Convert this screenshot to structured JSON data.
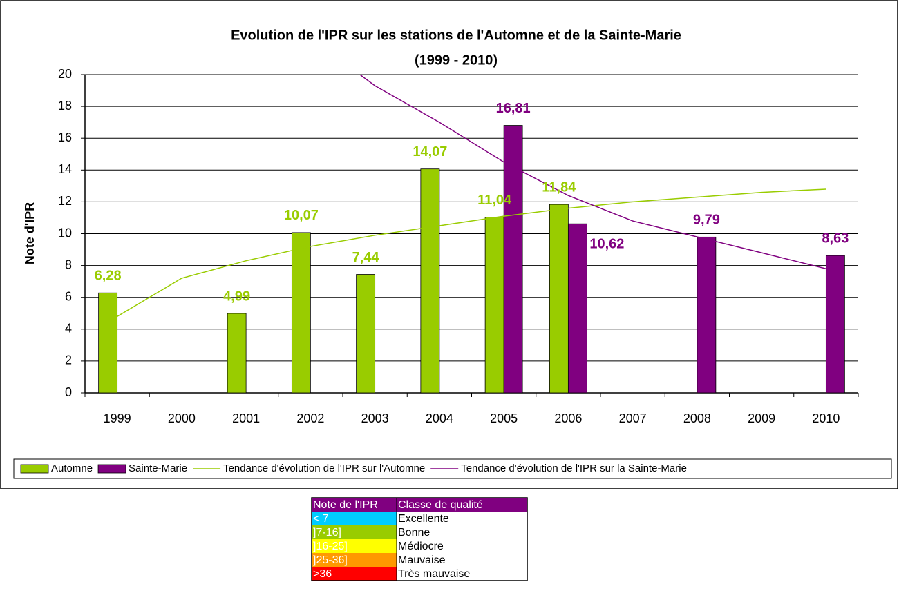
{
  "chart_data": {
    "type": "bar",
    "title": [
      "Evolution de l'IPR sur les stations de l'Automne et de la Sainte-Marie",
      "(1999 - 2010)"
    ],
    "y_label": "Note d'IPR",
    "categories": [
      "1999",
      "2000",
      "2001",
      "2002",
      "2003",
      "2004",
      "2005",
      "2006",
      "2007",
      "2008",
      "2009",
      "2010"
    ],
    "series": [
      {
        "name": "Automne",
        "type": "bar",
        "color": "#99cc00",
        "values": [
          6.28,
          null,
          4.99,
          10.07,
          7.44,
          14.07,
          11.04,
          11.84,
          null,
          null,
          null,
          null
        ],
        "value_labels": [
          "6,28",
          null,
          "4,99",
          "10,07",
          "7,44",
          "14,07",
          "11,04",
          "11,84",
          null,
          null,
          null,
          null
        ]
      },
      {
        "name": "Sainte-Marie",
        "type": "bar",
        "color": "#800080",
        "values": [
          null,
          null,
          null,
          null,
          null,
          null,
          16.81,
          10.62,
          null,
          9.79,
          null,
          8.63
        ],
        "value_labels": [
          null,
          null,
          null,
          null,
          null,
          null,
          "16,81",
          "10,62",
          null,
          "9,79",
          null,
          "8,63"
        ]
      },
      {
        "name": "Tendance d'évolution de l'IPR sur l'Automne",
        "type": "line",
        "color": "#99cc00",
        "values": [
          4.8,
          7.2,
          8.3,
          9.2,
          9.9,
          10.5,
          11.1,
          11.6,
          12.0,
          12.3,
          12.6,
          12.8
        ]
      },
      {
        "name": "Tendance d'évolution de l'IPR sur la Sainte-Marie",
        "type": "line",
        "color": "#800080",
        "values": [
          null,
          null,
          null,
          22.3,
          19.3,
          17.0,
          14.5,
          12.4,
          10.8,
          9.8,
          8.8,
          7.8
        ]
      }
    ],
    "ylim": [
      0,
      20
    ],
    "yticks": [
      0,
      2,
      4,
      6,
      8,
      10,
      12,
      14,
      16,
      18,
      20
    ],
    "grid": true,
    "legend": "bottom"
  },
  "table": {
    "header": [
      "Note de l'IPR",
      "Classe de qualité"
    ],
    "header_color": "#800080",
    "rows": [
      [
        "< 7",
        "Excellente"
      ],
      [
        "]7-16]",
        "Bonne"
      ],
      [
        "]16-25]",
        "Médiocre"
      ],
      [
        "]25-36]",
        "Mauvaise"
      ],
      [
        ">36",
        "Très mauvaise"
      ]
    ],
    "colors": [
      "#00ccff",
      "#99cc00",
      "#ffff00",
      "#ff9900",
      "#ff0000"
    ]
  }
}
